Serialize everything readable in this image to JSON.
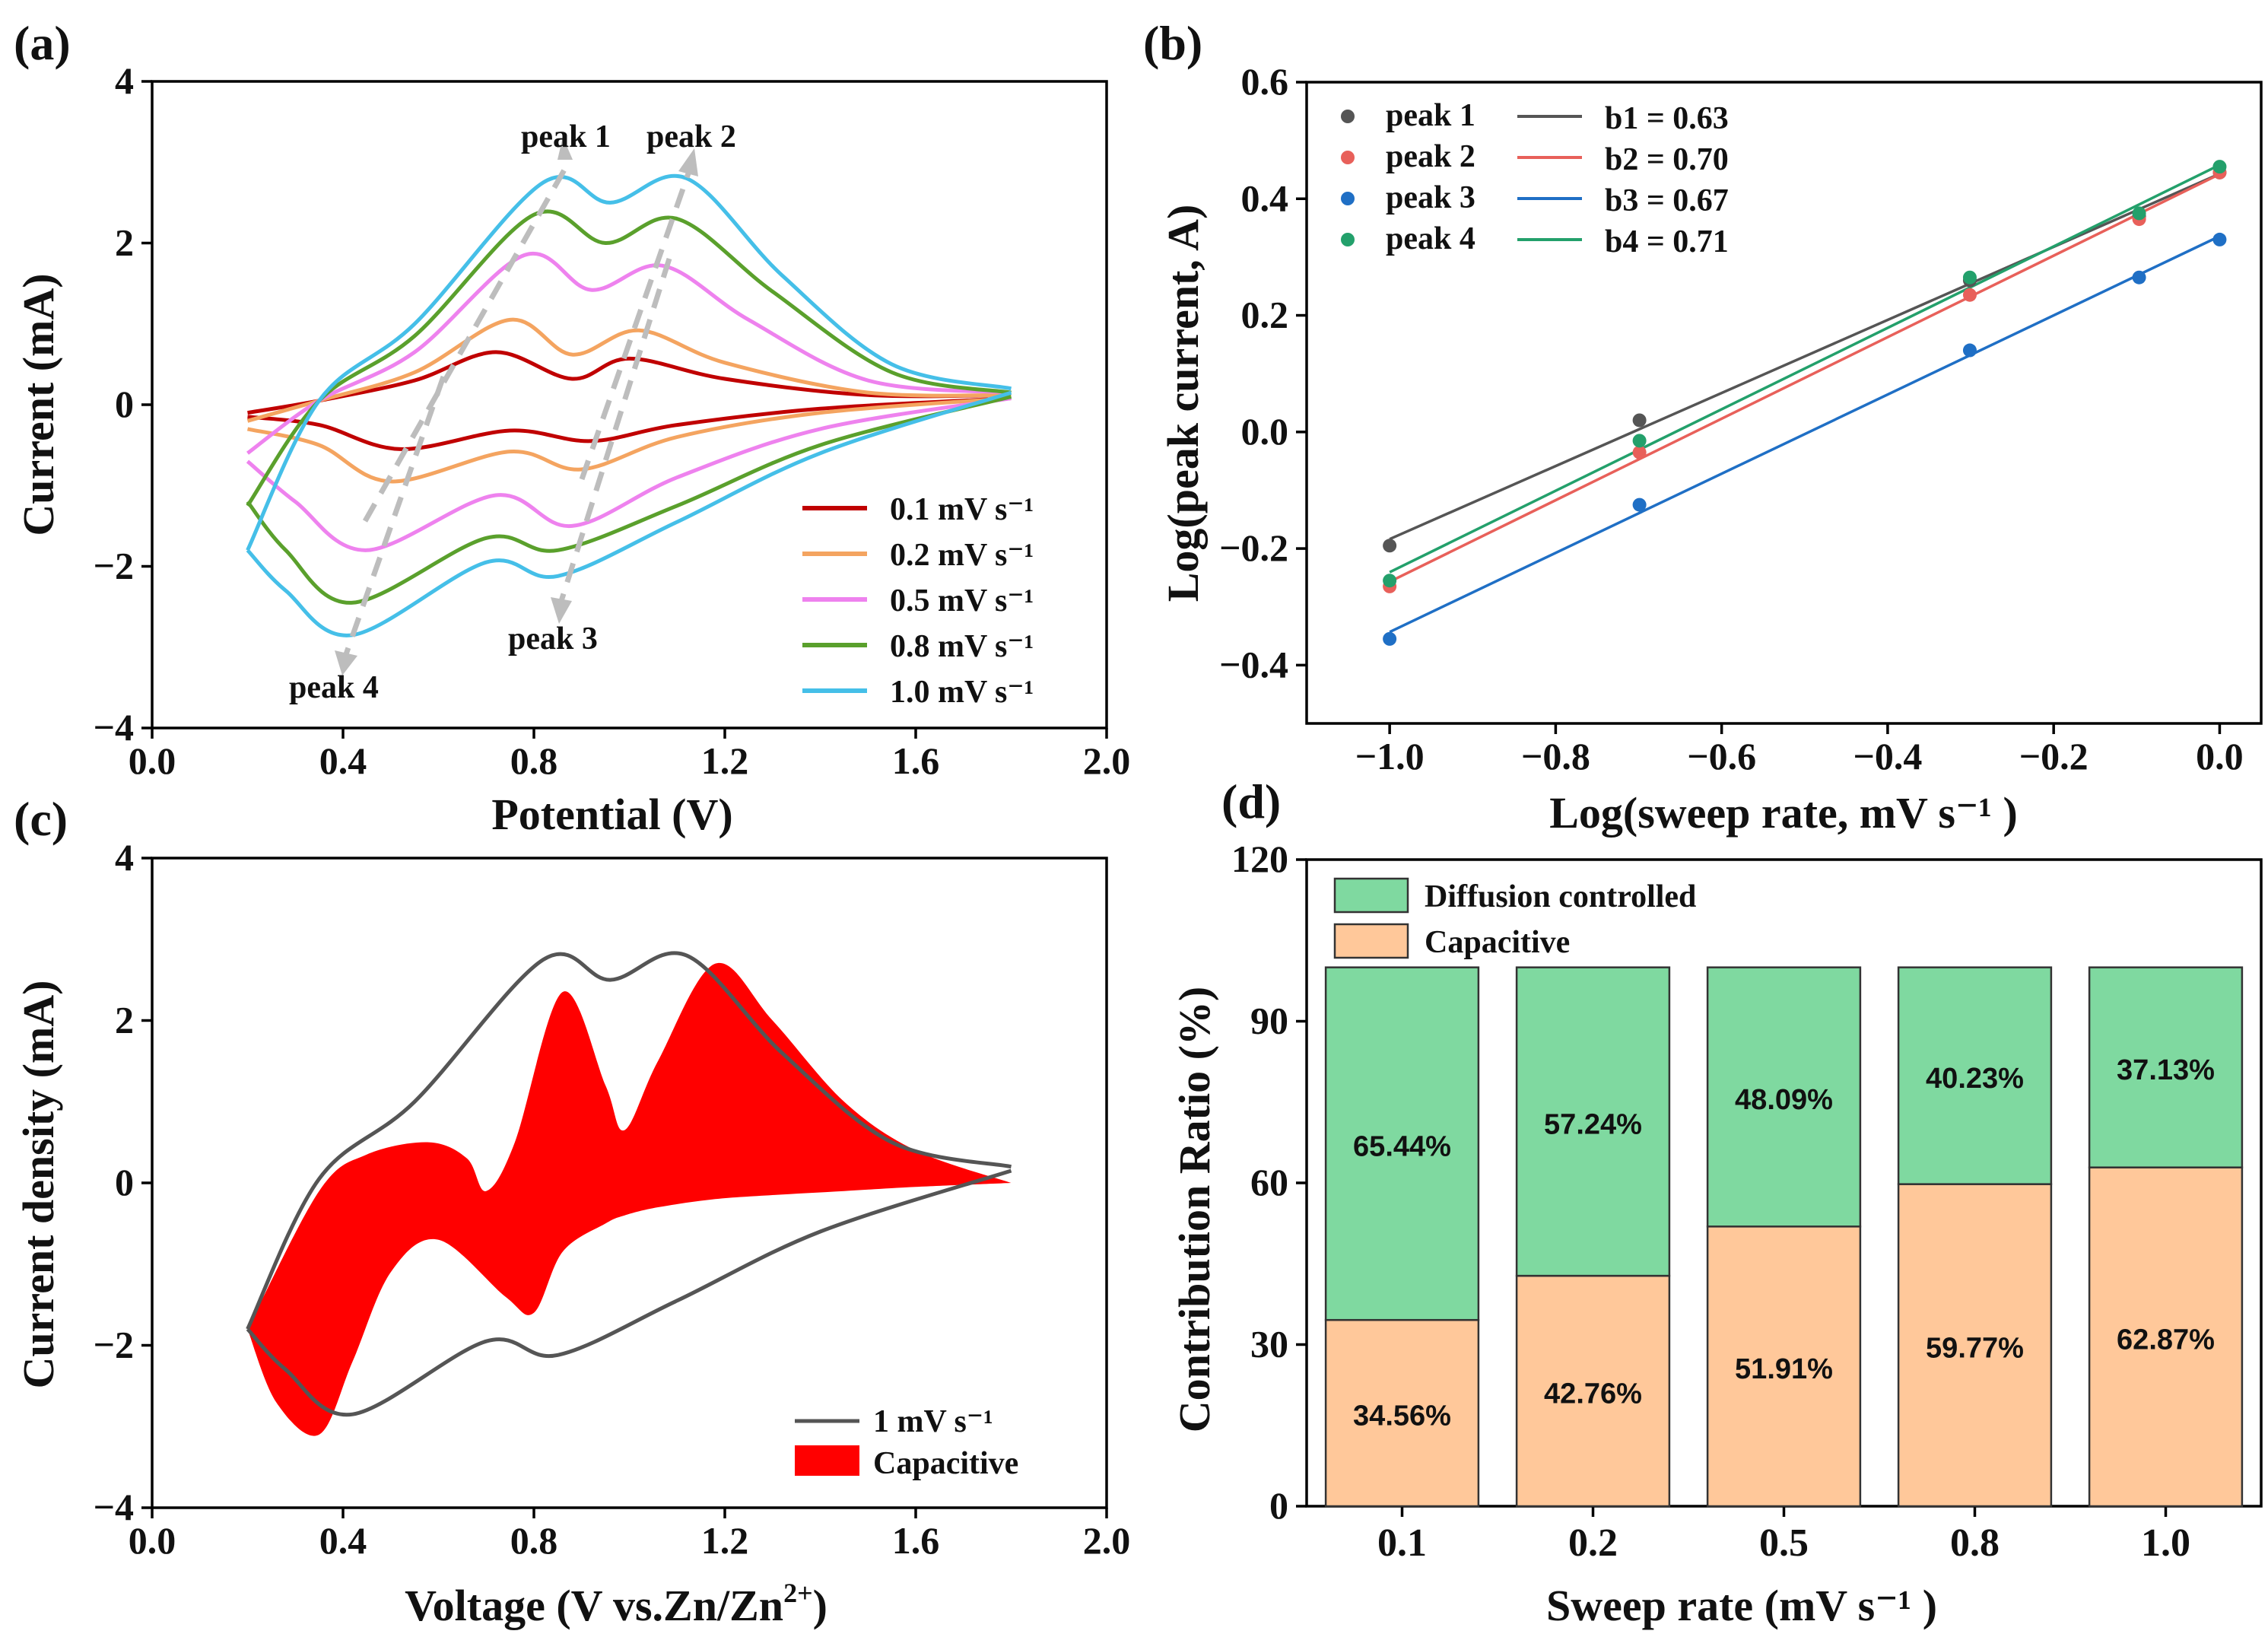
{
  "chart_data": [
    {
      "panel": "(a)",
      "type": "line",
      "xlabel": "Potential (V)",
      "ylabel": "Current (mA)",
      "xlim": [
        0.0,
        2.0
      ],
      "ylim": [
        -4,
        4
      ],
      "xticks": [
        "0.0",
        "0.4",
        "0.8",
        "1.2",
        "1.6",
        "2.0"
      ],
      "yticks": [
        "4",
        "2",
        "0",
        "−2",
        "−4"
      ],
      "legend_position": "bottom-right",
      "annotations": [
        "peak 1",
        "peak 2",
        "peak 3",
        "peak 4"
      ],
      "series": [
        {
          "name": "0.1 mV s⁻¹",
          "color": "#c00000",
          "anodic": {
            "x": [
              0.2,
              0.35,
              0.55,
              0.72,
              0.88,
              1.0,
              1.2,
              1.5,
              1.8
            ],
            "y": [
              -0.1,
              0.05,
              0.3,
              0.65,
              0.32,
              0.57,
              0.32,
              0.12,
              0.12
            ]
          },
          "cathodic": {
            "x": [
              1.8,
              1.4,
              1.1,
              0.92,
              0.75,
              0.52,
              0.35,
              0.2
            ],
            "y": [
              0.08,
              -0.05,
              -0.25,
              -0.45,
              -0.32,
              -0.55,
              -0.25,
              -0.15
            ]
          }
        },
        {
          "name": "0.2 mV s⁻¹",
          "color": "#f4a460",
          "anodic": {
            "x": [
              0.2,
              0.35,
              0.55,
              0.75,
              0.88,
              1.02,
              1.2,
              1.5,
              1.8
            ],
            "y": [
              -0.2,
              0.05,
              0.4,
              1.05,
              0.62,
              0.92,
              0.52,
              0.15,
              0.12
            ]
          },
          "cathodic": {
            "x": [
              1.8,
              1.4,
              1.1,
              0.9,
              0.75,
              0.5,
              0.35,
              0.2
            ],
            "y": [
              0.08,
              -0.1,
              -0.4,
              -0.8,
              -0.58,
              -0.95,
              -0.5,
              -0.3
            ]
          }
        },
        {
          "name": "0.5 mV s⁻¹",
          "color": "#ee82ee",
          "anodic": {
            "x": [
              0.2,
              0.35,
              0.55,
              0.78,
              0.92,
              1.07,
              1.25,
              1.5,
              1.8
            ],
            "y": [
              -0.6,
              0.05,
              0.65,
              1.85,
              1.42,
              1.72,
              1.05,
              0.3,
              0.15
            ]
          },
          "cathodic": {
            "x": [
              1.8,
              1.4,
              1.1,
              0.88,
              0.72,
              0.45,
              0.3,
              0.2
            ],
            "y": [
              0.08,
              -0.3,
              -0.9,
              -1.5,
              -1.12,
              -1.8,
              -1.2,
              -0.7
            ]
          }
        },
        {
          "name": "0.8 mV s⁻¹",
          "color": "#5aa02c",
          "anodic": {
            "x": [
              0.2,
              0.35,
              0.55,
              0.8,
              0.95,
              1.1,
              1.3,
              1.55,
              1.8
            ],
            "y": [
              -1.25,
              0.05,
              0.85,
              2.35,
              2.0,
              2.3,
              1.4,
              0.4,
              0.15
            ]
          },
          "cathodic": {
            "x": [
              1.8,
              1.4,
              1.1,
              0.85,
              0.7,
              0.42,
              0.28,
              0.2
            ],
            "y": [
              0.1,
              -0.5,
              -1.25,
              -1.8,
              -1.65,
              -2.45,
              -1.8,
              -1.2
            ]
          }
        },
        {
          "name": "1.0 mV s⁻¹",
          "color": "#45bfe8",
          "anodic": {
            "x": [
              0.2,
              0.35,
              0.55,
              0.82,
              0.96,
              1.12,
              1.32,
              1.55,
              1.8
            ],
            "y": [
              -1.8,
              0.05,
              1.0,
              2.75,
              2.5,
              2.8,
              1.6,
              0.5,
              0.2
            ]
          },
          "cathodic": {
            "x": [
              1.8,
              1.4,
              1.1,
              0.85,
              0.7,
              0.42,
              0.28,
              0.2
            ],
            "y": [
              0.15,
              -0.6,
              -1.45,
              -2.12,
              -1.95,
              -2.85,
              -2.3,
              -1.8
            ]
          }
        }
      ]
    },
    {
      "panel": "(b)",
      "type": "scatter",
      "xlabel": "Log(sweep rate, mV s⁻¹ )",
      "ylabel": "Log(peak current, A)",
      "xlim": [
        -1.1,
        0.05
      ],
      "ylim": [
        -0.5,
        0.6
      ],
      "xticks": [
        "−1.0",
        "−0.8",
        "−0.6",
        "−0.4",
        "−0.2",
        "0.0"
      ],
      "yticks": [
        "0.6",
        "0.4",
        "0.2",
        "0.0",
        "−0.2",
        "−0.4"
      ],
      "legend_position": "top-left",
      "x": [
        -1.0,
        -0.699,
        -0.301,
        -0.097,
        0.0
      ],
      "series": [
        {
          "name": "peak 1",
          "fit": "b1 = 0.63",
          "color": "#555555",
          "values": [
            -0.195,
            0.02,
            0.26,
            0.37,
            0.445
          ]
        },
        {
          "name": "peak 2",
          "fit": "b2 = 0.70",
          "color": "#e8605a",
          "values": [
            -0.265,
            -0.035,
            0.235,
            0.365,
            0.445
          ]
        },
        {
          "name": "peak 3",
          "fit": "b3 = 0.67",
          "color": "#1f6fc5",
          "values": [
            -0.355,
            -0.125,
            0.14,
            0.265,
            0.33
          ]
        },
        {
          "name": "peak 4",
          "fit": "b4 = 0.71",
          "color": "#23a06b",
          "values": [
            -0.255,
            -0.015,
            0.265,
            0.375,
            0.455
          ]
        }
      ]
    },
    {
      "panel": "(c)",
      "type": "area",
      "xlabel_main": "Voltage (V vs.Zn/Zn",
      "xlabel_sup": "2+",
      "xlabel_end": ")",
      "ylabel": "Current density (mA)",
      "xlim": [
        0.0,
        2.0
      ],
      "ylim": [
        -4,
        4
      ],
      "xticks": [
        "0.0",
        "0.4",
        "0.8",
        "1.2",
        "1.6",
        "2.0"
      ],
      "yticks": [
        "4",
        "2",
        "0",
        "−2",
        "−4"
      ],
      "legend_position": "bottom-right",
      "series": [
        {
          "name": "1 mV s⁻¹",
          "color": "#555555",
          "anodic": {
            "x": [
              0.2,
              0.35,
              0.55,
              0.82,
              0.96,
              1.12,
              1.32,
              1.55,
              1.8
            ],
            "y": [
              -1.8,
              0.05,
              1.0,
              2.75,
              2.5,
              2.8,
              1.6,
              0.5,
              0.2
            ]
          },
          "cathodic": {
            "x": [
              1.8,
              1.4,
              1.1,
              0.85,
              0.7,
              0.42,
              0.28,
              0.2
            ],
            "y": [
              0.15,
              -0.6,
              -1.45,
              -2.12,
              -1.95,
              -2.85,
              -2.3,
              -1.8
            ]
          }
        },
        {
          "name": "Capacitive",
          "color": "#ff0000",
          "upper": {
            "x": [
              0.2,
              0.35,
              0.45,
              0.58,
              0.66,
              0.7,
              0.76,
              0.86,
              0.95,
              0.99,
              1.06,
              1.18,
              1.3,
              1.45,
              1.6,
              1.8
            ],
            "y": [
              -1.8,
              -0.1,
              0.35,
              0.5,
              0.3,
              -0.1,
              0.5,
              2.35,
              1.2,
              0.65,
              1.5,
              2.7,
              2.0,
              1.0,
              0.4,
              0.0
            ]
          },
          "lower": {
            "x": [
              1.8,
              1.6,
              1.45,
              1.3,
              1.18,
              1.06,
              0.99,
              0.95,
              0.86,
              0.8,
              0.74,
              0.6,
              0.5,
              0.42,
              0.35,
              0.26,
              0.2
            ],
            "y": [
              0.0,
              -0.05,
              -0.1,
              -0.15,
              -0.2,
              -0.3,
              -0.4,
              -0.5,
              -0.85,
              -1.6,
              -1.4,
              -0.7,
              -1.1,
              -2.2,
              -3.1,
              -2.7,
              -1.8
            ]
          }
        }
      ]
    },
    {
      "panel": "(d)",
      "type": "bar",
      "stacked": true,
      "xlabel": "Sweep rate (mV s⁻¹ )",
      "ylabel": "Contribution Ratio (%)",
      "ylim": [
        0,
        120
      ],
      "yticks": [
        "120",
        "90",
        "60",
        "30",
        "0"
      ],
      "legend_position": "top-left",
      "categories": [
        "0.1",
        "0.2",
        "0.5",
        "0.8",
        "1.0"
      ],
      "series": [
        {
          "name": "Capacitive",
          "color": "#ffc89a",
          "values": [
            34.56,
            42.76,
            51.91,
            59.77,
            62.87
          ],
          "labels": [
            "34.56%",
            "42.76%",
            "51.91%",
            "59.77%",
            "62.87%"
          ]
        },
        {
          "name": "Diffusion controlled",
          "color": "#7fd9a0",
          "values": [
            65.44,
            57.24,
            48.09,
            40.23,
            37.13
          ],
          "labels": [
            "65.44%",
            "57.24%",
            "48.09%",
            "40.23%",
            "37.13%"
          ]
        }
      ]
    }
  ],
  "panel_labels": [
    "(a)",
    "(b)",
    "(c)",
    "(d)"
  ]
}
